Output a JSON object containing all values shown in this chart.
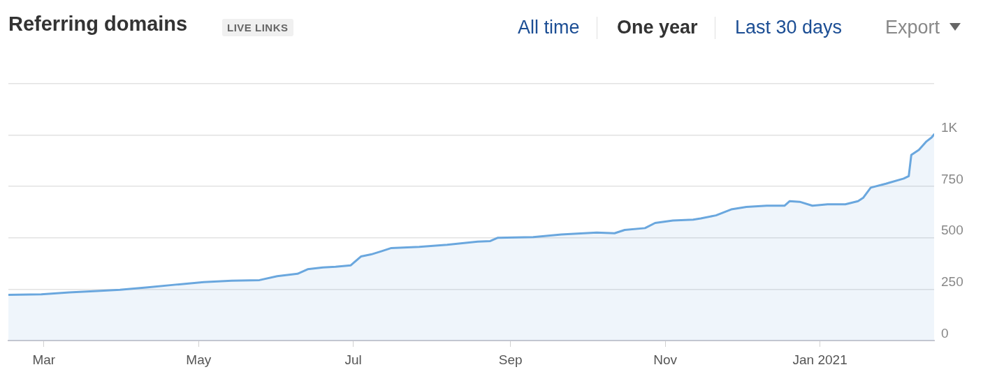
{
  "chart_data": {
    "type": "area",
    "title": "Referring domains",
    "subtitle": "LIVE LINKS",
    "annotations": [
      "All time",
      "One year",
      "Last 30 days",
      "Export"
    ],
    "x": [
      "2020-02-16",
      "2020-02-29",
      "2020-03-11",
      "2020-03-22",
      "2020-03-31",
      "2020-04-11",
      "2020-04-22",
      "2020-05-03",
      "2020-05-14",
      "2020-05-25",
      "2020-06-01",
      "2020-06-09",
      "2020-06-13",
      "2020-06-19",
      "2020-06-24",
      "2020-06-30",
      "2020-07-04",
      "2020-07-08",
      "2020-07-12",
      "2020-07-16",
      "2020-07-27",
      "2020-08-07",
      "2020-08-19",
      "2020-08-24",
      "2020-08-27",
      "2020-09-10",
      "2020-09-21",
      "2020-10-05",
      "2020-10-12",
      "2020-10-16",
      "2020-10-24",
      "2020-10-28",
      "2020-11-04",
      "2020-11-12",
      "2020-11-15",
      "2020-11-21",
      "2020-11-27",
      "2020-12-03",
      "2020-12-11",
      "2020-12-18",
      "2020-12-20",
      "2020-12-24",
      "2020-12-29",
      "2021-01-04",
      "2021-01-11",
      "2021-01-16",
      "2021-01-18",
      "2021-01-21",
      "2021-01-27",
      "2021-02-03",
      "2021-02-05",
      "2021-02-06",
      "2021-02-09",
      "2021-02-12",
      "2021-02-14",
      "2021-02-15"
    ],
    "series": [
      {
        "color": "#6aa7de",
        "values": [
          222,
          225,
          234,
          241,
          247,
          259,
          272,
          284,
          291,
          294,
          313,
          325,
          347,
          356,
          359,
          366,
          409,
          419,
          434,
          450,
          456,
          466,
          481,
          484,
          500,
          503,
          516,
          525,
          522,
          538,
          547,
          572,
          584,
          588,
          594,
          609,
          638,
          650,
          656,
          656,
          678,
          675,
          656,
          663,
          663,
          678,
          694,
          744,
          763,
          788,
          800,
          903,
          928,
          969,
          988,
          1003
        ]
      }
    ],
    "xlim": [
      "2020-02-16",
      "2021-02-15"
    ],
    "xticks": [
      {
        "value": "2020-03-01",
        "label": "Mar"
      },
      {
        "value": "2020-05-01",
        "label": "May"
      },
      {
        "value": "2020-07-01",
        "label": "Jul"
      },
      {
        "value": "2020-09-01",
        "label": "Sep"
      },
      {
        "value": "2020-11-01",
        "label": "Nov"
      },
      {
        "value": "2021-01-01",
        "label": "Jan 2021"
      }
    ],
    "ylim": [
      0,
      1250
    ],
    "yticks": [
      0,
      250,
      500,
      750,
      {
        "value": 1000,
        "label": "1K"
      },
      {
        "value": 1250,
        "label": null
      }
    ],
    "grid": "y",
    "legend": false,
    "marker": "none",
    "line_style": "solid"
  }
}
